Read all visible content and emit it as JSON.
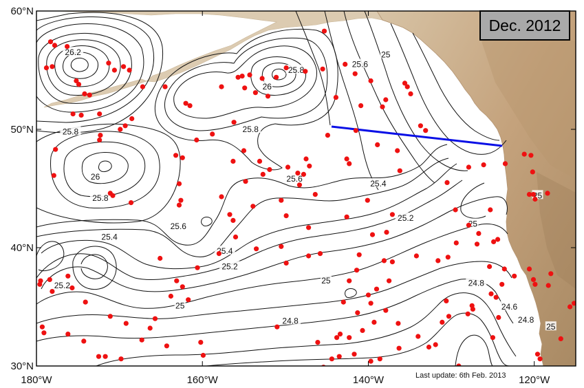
{
  "title_box": "Dec. 2012",
  "update_note": "Last update: 6th Feb. 2013",
  "map": {
    "lon_range": [
      -180,
      -115
    ],
    "lat_range": [
      30,
      60
    ],
    "x_ticks": [
      {
        "lon": -180,
        "label": "180°W"
      },
      {
        "lon": -160,
        "label": "160°W"
      },
      {
        "lon": -140,
        "label": "140°W"
      },
      {
        "lon": -120,
        "label": "120°W"
      }
    ],
    "y_ticks": [
      {
        "lat": 30,
        "label": "30°N"
      },
      {
        "lat": 40,
        "label": "40°N"
      },
      {
        "lat": 50,
        "label": "50°N"
      },
      {
        "lat": 60,
        "label": "60°N"
      }
    ],
    "contour_labels": [
      {
        "text": "26.2",
        "lon": -175.6,
        "lat": 56.5
      },
      {
        "text": "26",
        "lon": -152.2,
        "lat": 53.6
      },
      {
        "text": "25.8",
        "lon": -148.7,
        "lat": 55.0
      },
      {
        "text": "25.6",
        "lon": -141.0,
        "lat": 55.5
      },
      {
        "text": "25",
        "lon": -137.9,
        "lat": 56.3
      },
      {
        "text": "25.8",
        "lon": -175.9,
        "lat": 49.8
      },
      {
        "text": "25.8",
        "lon": -154.2,
        "lat": 50.0
      },
      {
        "text": "26",
        "lon": -172.9,
        "lat": 46.0
      },
      {
        "text": "25.8",
        "lon": -172.3,
        "lat": 44.2
      },
      {
        "text": "25.6",
        "lon": -148.9,
        "lat": 45.8
      },
      {
        "text": "25.4",
        "lon": -138.8,
        "lat": 45.4
      },
      {
        "text": "25.2",
        "lon": -135.5,
        "lat": 42.5
      },
      {
        "text": "25",
        "lon": -127.4,
        "lat": 42.0
      },
      {
        "text": "25",
        "lon": -119.6,
        "lat": 44.4
      },
      {
        "text": "25.6",
        "lon": -162.9,
        "lat": 41.8
      },
      {
        "text": "25.4",
        "lon": -171.2,
        "lat": 40.9
      },
      {
        "text": "25.4",
        "lon": -157.3,
        "lat": 39.7
      },
      {
        "text": "25.2",
        "lon": -156.7,
        "lat": 38.4
      },
      {
        "text": "25.2",
        "lon": -176.9,
        "lat": 36.8
      },
      {
        "text": "25",
        "lon": -145.1,
        "lat": 37.2
      },
      {
        "text": "25",
        "lon": -162.7,
        "lat": 35.1
      },
      {
        "text": "24.8",
        "lon": -149.4,
        "lat": 33.8
      },
      {
        "text": "24.8",
        "lon": -127.0,
        "lat": 37.0
      },
      {
        "text": "24.6",
        "lon": -123.0,
        "lat": 35.0
      },
      {
        "text": "24.8",
        "lon": -121.0,
        "lat": 33.9
      },
      {
        "text": "25",
        "lon": -118.0,
        "lat": 33.3
      }
    ],
    "floats": [
      [
        -178.3,
        57.4
      ],
      [
        -177.8,
        57.1
      ],
      [
        -178.8,
        55.2
      ],
      [
        -178.1,
        55.3
      ],
      [
        -176.3,
        57.0
      ],
      [
        -175.2,
        54.1
      ],
      [
        -174.9,
        53.8
      ],
      [
        -174.2,
        53.0
      ],
      [
        -173.6,
        52.9
      ],
      [
        -171.3,
        55.6
      ],
      [
        -170.6,
        55.0
      ],
      [
        -169.5,
        55.3
      ],
      [
        -168.8,
        55.0
      ],
      [
        -175.6,
        51.3
      ],
      [
        -174.6,
        51.2
      ],
      [
        -172.4,
        51.3
      ],
      [
        -168.5,
        50.9
      ],
      [
        -169.3,
        50.3
      ],
      [
        -169.9,
        50.0
      ],
      [
        -172.3,
        49.5
      ],
      [
        -172.4,
        49.1
      ],
      [
        -177.7,
        48.3
      ],
      [
        -177.9,
        46.1
      ],
      [
        -171.1,
        44.6
      ],
      [
        -170.8,
        44.4
      ],
      [
        -168.6,
        43.8
      ],
      [
        -167.2,
        53.6
      ],
      [
        -164.5,
        53.6
      ],
      [
        -162.0,
        52.2
      ],
      [
        -161.5,
        52.0
      ],
      [
        -160.7,
        49.1
      ],
      [
        -157.7,
        53.6
      ],
      [
        -155.7,
        54.4
      ],
      [
        -155.2,
        54.5
      ],
      [
        -154.3,
        54.6
      ],
      [
        -154.9,
        53.5
      ],
      [
        -153.6,
        53.1
      ],
      [
        -152.1,
        52.8
      ],
      [
        -152.8,
        54.3
      ],
      [
        -151.1,
        54.4
      ],
      [
        -149.9,
        55.2
      ],
      [
        -147.6,
        54.9
      ],
      [
        -145.3,
        58.3
      ],
      [
        -142.8,
        55.5
      ],
      [
        -141.6,
        54.7
      ],
      [
        -139.7,
        54.1
      ],
      [
        -137.9,
        52.5
      ],
      [
        -135.6,
        53.9
      ],
      [
        -135.3,
        53.6
      ],
      [
        -134.9,
        53.0
      ],
      [
        -133.7,
        50.3
      ],
      [
        -133.1,
        49.9
      ],
      [
        -138.3,
        51.9
      ],
      [
        -140.9,
        52.0
      ],
      [
        -143.9,
        52.7
      ],
      [
        -145.5,
        55.1
      ],
      [
        -144.9,
        49.5
      ],
      [
        -141.5,
        49.9
      ],
      [
        -138.9,
        48.7
      ],
      [
        -136.5,
        48.2
      ],
      [
        -136.2,
        46.5
      ],
      [
        -142.3,
        47.1
      ],
      [
        -142.6,
        47.5
      ],
      [
        -147.5,
        47.5
      ],
      [
        -147.1,
        46.9
      ],
      [
        -148.5,
        46.3
      ],
      [
        -147.8,
        46.2
      ],
      [
        -148.3,
        45.3
      ],
      [
        -149.7,
        46.8
      ],
      [
        -151.9,
        46.6
      ],
      [
        -152.7,
        46.2
      ],
      [
        -153.1,
        47.3
      ],
      [
        -150.5,
        44.0
      ],
      [
        -156.3,
        47.3
      ],
      [
        -155.0,
        48.2
      ],
      [
        -156.2,
        50.6
      ],
      [
        -158.8,
        49.6
      ],
      [
        -163.2,
        47.8
      ],
      [
        -162.4,
        47.6
      ],
      [
        -162.8,
        45.4
      ],
      [
        -162.6,
        44.0
      ],
      [
        -162.8,
        43.6
      ],
      [
        -157.7,
        44.3
      ],
      [
        -156.7,
        42.8
      ],
      [
        -156.3,
        42.3
      ],
      [
        -154.8,
        45.6
      ],
      [
        -153.9,
        43.5
      ],
      [
        -149.9,
        42.7
      ],
      [
        -147.2,
        41.7
      ],
      [
        -146.4,
        44.5
      ],
      [
        -140.1,
        44.0
      ],
      [
        -142.6,
        42.6
      ],
      [
        -137.8,
        41.3
      ],
      [
        -137.1,
        42.8
      ],
      [
        -130.5,
        45.5
      ],
      [
        -129.5,
        43.2
      ],
      [
        -127.9,
        46.8
      ],
      [
        -126.1,
        47.0
      ],
      [
        -123.5,
        47.1
      ],
      [
        -121.2,
        47.9
      ],
      [
        -120.4,
        47.8
      ],
      [
        -120.2,
        46.4
      ],
      [
        -120.1,
        44.5
      ],
      [
        -119.9,
        44.1
      ],
      [
        -120.6,
        44.5
      ],
      [
        -118.4,
        44.6
      ],
      [
        -125.3,
        43.2
      ],
      [
        -124.4,
        40.7
      ],
      [
        -124.9,
        40.5
      ],
      [
        -126.9,
        40.3
      ],
      [
        -126.7,
        41.2
      ],
      [
        -127.9,
        41.9
      ],
      [
        -129.4,
        40.4
      ],
      [
        -130.4,
        39.2
      ],
      [
        -131.6,
        38.9
      ],
      [
        -134.2,
        39.3
      ],
      [
        -137.1,
        38.8
      ],
      [
        -138.1,
        38.9
      ],
      [
        -139.5,
        41.1
      ],
      [
        -141.1,
        39.4
      ],
      [
        -147.2,
        39.3
      ],
      [
        -145.8,
        39.5
      ],
      [
        -150.5,
        40.1
      ],
      [
        -149.9,
        38.7
      ],
      [
        -153.5,
        39.9
      ],
      [
        -156.0,
        40.9
      ],
      [
        -158.0,
        39.5
      ],
      [
        -160.6,
        38.3
      ],
      [
        -163.1,
        37.2
      ],
      [
        -162.4,
        36.7
      ],
      [
        -165.1,
        39.1
      ],
      [
        -163.8,
        35.9
      ],
      [
        -161.7,
        35.6
      ],
      [
        -165.7,
        34.0
      ],
      [
        -169.2,
        33.6
      ],
      [
        -171.1,
        34.2
      ],
      [
        -174.1,
        35.4
      ],
      [
        -175.7,
        36.6
      ],
      [
        -176.2,
        37.6
      ],
      [
        -178.4,
        37.3
      ],
      [
        -179.5,
        37.2
      ],
      [
        -179.6,
        36.9
      ],
      [
        -178.1,
        36.3
      ],
      [
        -179.3,
        33.3
      ],
      [
        -179.1,
        32.8
      ],
      [
        -176.2,
        32.7
      ],
      [
        -174.3,
        32.1
      ],
      [
        -172.5,
        30.8
      ],
      [
        -171.7,
        30.8
      ],
      [
        -169.8,
        30.6
      ],
      [
        -167.3,
        32.2
      ],
      [
        -166.3,
        33.2
      ],
      [
        -164.3,
        31.7
      ],
      [
        -160.2,
        32.0
      ],
      [
        -159.9,
        30.9
      ],
      [
        -151.0,
        33.3
      ],
      [
        -146.1,
        32.0
      ],
      [
        -143.8,
        32.4
      ],
      [
        -143.4,
        32.7
      ],
      [
        -142.3,
        32.4
      ],
      [
        -143.5,
        30.8
      ],
      [
        -141.7,
        31.0
      ],
      [
        -141.3,
        34.5
      ],
      [
        -140.7,
        33.0
      ],
      [
        -139.3,
        33.7
      ],
      [
        -139.7,
        35.3
      ],
      [
        -140.0,
        36.0
      ],
      [
        -137.9,
        34.7
      ],
      [
        -136.4,
        33.6
      ],
      [
        -136.3,
        31.5
      ],
      [
        -134.0,
        32.5
      ],
      [
        -132.7,
        31.6
      ],
      [
        -131.1,
        33.7
      ],
      [
        -130.3,
        34.2
      ],
      [
        -130.6,
        35.5
      ],
      [
        -127.5,
        35.1
      ],
      [
        -125.2,
        36.1
      ],
      [
        -124.6,
        35.8
      ],
      [
        -123.9,
        36.9
      ],
      [
        -125.4,
        38.4
      ],
      [
        -123.6,
        38.2
      ],
      [
        -120.6,
        38.2
      ],
      [
        -120.1,
        37.3
      ],
      [
        -119.9,
        36.9
      ],
      [
        -118.3,
        36.8
      ],
      [
        -118.0,
        37.8
      ],
      [
        -122.4,
        37.6
      ],
      [
        -124.3,
        34.1
      ],
      [
        -125.0,
        32.4
      ],
      [
        -127.4,
        34.8
      ],
      [
        -128.0,
        34.4
      ],
      [
        -131.9,
        31.8
      ],
      [
        -129.1,
        30.0
      ],
      [
        -119.6,
        31.0
      ],
      [
        -119.3,
        30.6
      ],
      [
        -116.8,
        32.3
      ],
      [
        -115.7,
        35.0
      ],
      [
        -115.2,
        35.3
      ],
      [
        -139.7,
        30.4
      ],
      [
        -138.6,
        30.6
      ],
      [
        -141.4,
        38.1
      ],
      [
        -142.3,
        37.2
      ],
      [
        -143.0,
        35.4
      ],
      [
        -137.5,
        37.2
      ],
      [
        -144.4,
        30.6
      ],
      [
        -145.4,
        29.9
      ],
      [
        -139.0,
        36.5
      ]
    ]
  }
}
